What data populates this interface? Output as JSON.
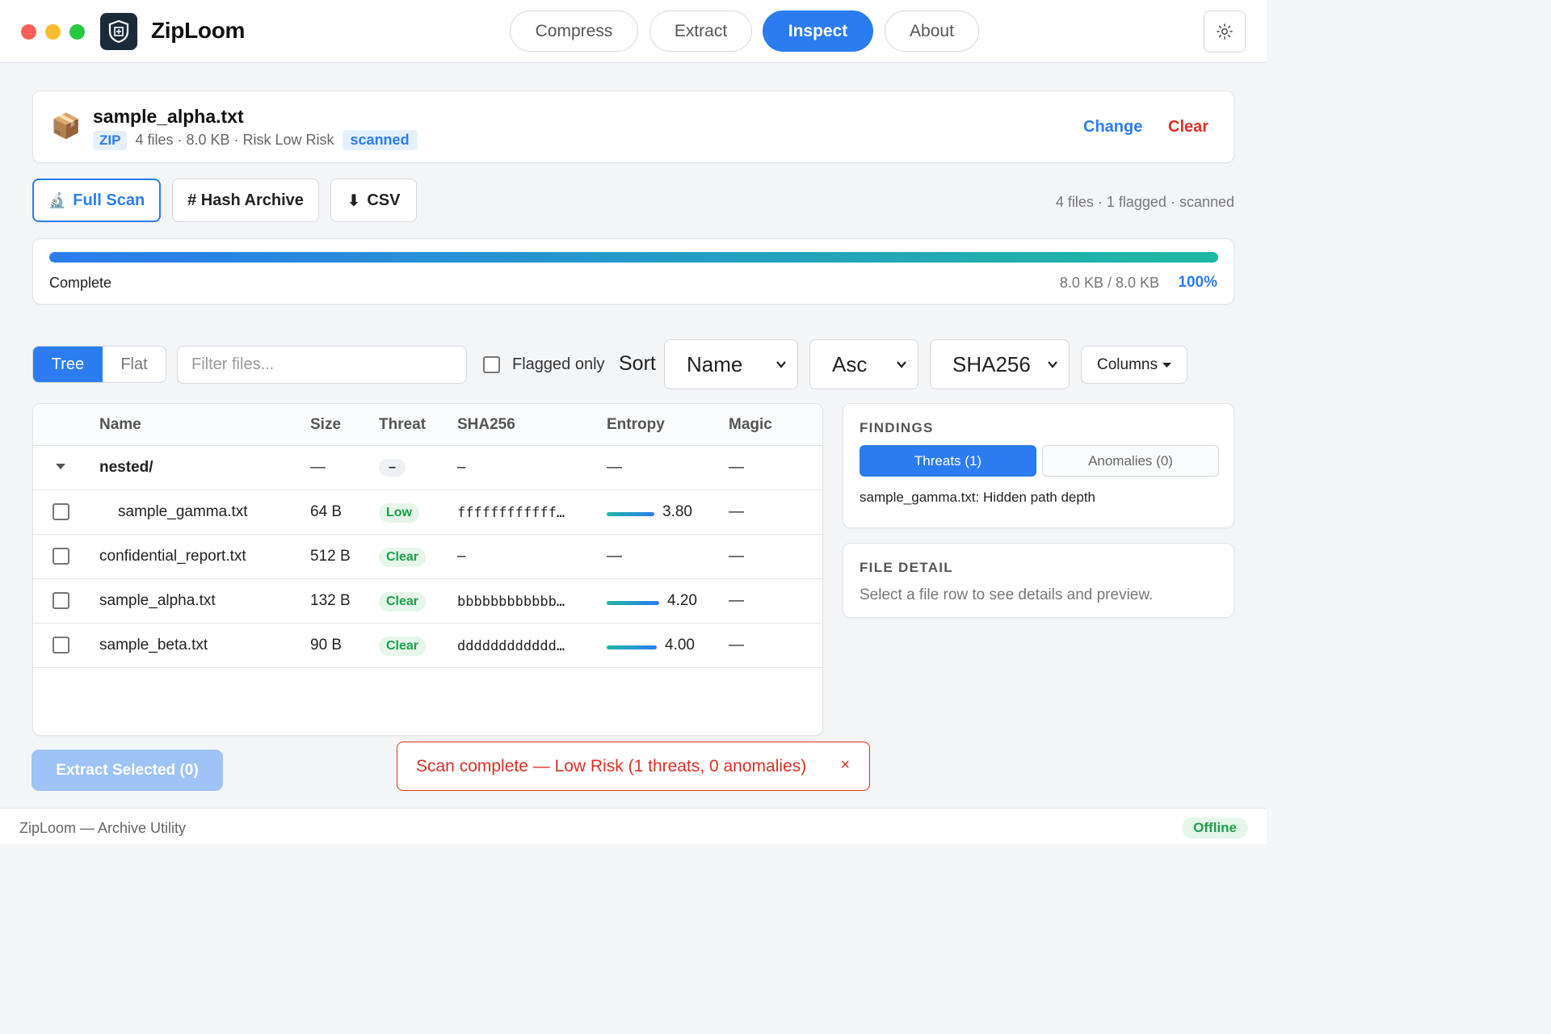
{
  "app": {
    "name": "ZipLoom"
  },
  "nav": {
    "tabs": [
      "Compress",
      "Extract",
      "Inspect",
      "About"
    ],
    "active": "Inspect"
  },
  "file": {
    "name": "sample_alpha.txt",
    "type_badge": "ZIP",
    "meta": "4 files · 8.0 KB · Risk Low Risk",
    "status_badge": "scanned",
    "change_label": "Change",
    "clear_label": "Clear"
  },
  "actions": {
    "full_scan": "Full Scan",
    "hash_archive": "# Hash Archive",
    "csv": "CSV",
    "summary": "4 files · 1 flagged · scanned"
  },
  "progress": {
    "label": "Complete",
    "bytes": "8.0 KB / 8.0 KB",
    "percent_text": "100%",
    "value": 1.0
  },
  "toolbar": {
    "view_tree": "Tree",
    "view_flat": "Flat",
    "filter_placeholder": "Filter files...",
    "flagged_only": "Flagged only",
    "sort_label": "Sort",
    "sort_field": "Name",
    "sort_order": "Asc",
    "hash_algo": "SHA256",
    "columns": "Columns"
  },
  "table": {
    "headers": [
      "Name",
      "Size",
      "Threat",
      "SHA256",
      "Entropy",
      "Magic"
    ],
    "rows": [
      {
        "name": "nested/",
        "size": "—",
        "threat": "–",
        "sha": "–",
        "entropy": "—",
        "magic": "—"
      },
      {
        "name": "sample_gamma.txt",
        "size": "64 B",
        "threat": "Low",
        "sha": "ffffffffffff…",
        "entropy": "3.80",
        "entropy_value": 3.8,
        "magic": "—"
      },
      {
        "name": "confidential_report.txt",
        "size": "512 B",
        "threat": "Clear",
        "sha": "–",
        "entropy": "—",
        "magic": "—"
      },
      {
        "name": "sample_alpha.txt",
        "size": "132 B",
        "threat": "Clear",
        "sha": "bbbbbbbbbbbb…",
        "entropy": "4.20",
        "entropy_value": 4.2,
        "magic": "—"
      },
      {
        "name": "sample_beta.txt",
        "size": "90 B",
        "threat": "Clear",
        "sha": "dddddddddddd…",
        "entropy": "4.00",
        "entropy_value": 4.0,
        "magic": "—"
      }
    ]
  },
  "findings": {
    "title": "FINDINGS",
    "threats_tab": "Threats (1)",
    "anomalies_tab": "Anomalies (0)",
    "items": [
      "sample_gamma.txt: Hidden path depth"
    ]
  },
  "detail": {
    "title": "FILE DETAIL",
    "hint": "Select a file row to see details and preview."
  },
  "extract_button": "Extract Selected (0)",
  "toast": {
    "message": "Scan complete — Low Risk (1 threats, 0 anomalies)",
    "close": "×"
  },
  "footer": {
    "text": "ZipLoom — Archive Utility",
    "status": "Offline"
  },
  "colors": {
    "accent": "#2b7cf0",
    "danger": "#d93025",
    "success": "#1e9e4a"
  }
}
